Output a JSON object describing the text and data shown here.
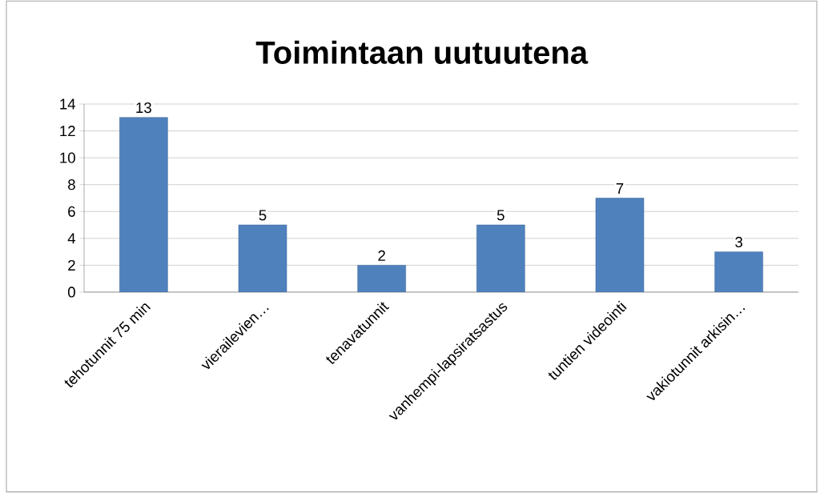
{
  "chart_data": {
    "type": "bar",
    "title": "Toimintaan uutuutena",
    "categories": [
      "tehotunnit 75 min",
      "vierailevien…",
      "tenavatunnit",
      "vanhempi-lapsiratsastus",
      "tuntien videointi",
      "vakiotunnit arkisin…"
    ],
    "values": [
      13,
      5,
      2,
      5,
      7,
      3
    ],
    "color": "#4f81bd",
    "ylim": [
      0,
      14
    ],
    "yticks": [
      0,
      2,
      4,
      6,
      8,
      10,
      12,
      14
    ],
    "grid": "y",
    "data_labels": true
  }
}
